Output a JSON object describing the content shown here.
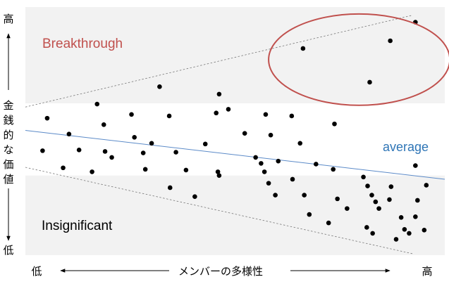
{
  "chart_data": {
    "type": "scatter",
    "y_axis": {
      "high_label": "高",
      "title": "金銭的な価値",
      "low_label": "低"
    },
    "x_axis": {
      "low_label": "低",
      "title": "メンバーの多様性",
      "high_label": "高"
    },
    "xlim": [
      0,
      100
    ],
    "ylim": [
      0,
      100
    ],
    "annotations": {
      "breakthrough": "Breakthrough",
      "average": "average",
      "insignificant": "Insignificant"
    },
    "colors": {
      "band": "#f2f2f2",
      "points": "#000000",
      "average_line": "#5b8ac8",
      "average_text": "#2e75b6",
      "breakthrough_text": "#c0504d",
      "ellipse": "#c0504d",
      "envelope": "#777777",
      "axis_text": "#000000"
    },
    "bands": [
      {
        "name": "top-band",
        "y0": 61.2,
        "y1": 100
      },
      {
        "name": "bottom-band",
        "y0": 0,
        "y1": 32.1
      }
    ],
    "lines": {
      "average": {
        "from": [
          0,
          50.3
        ],
        "to": [
          100,
          30.6
        ]
      },
      "upper_envelope": {
        "from": [
          0,
          59.7
        ],
        "to": [
          92.3,
          96.7
        ]
      },
      "lower_envelope": {
        "from": [
          0,
          35.4
        ],
        "to": [
          92.3,
          0.6
        ]
      }
    },
    "ellipse": {
      "cx": 79.6,
      "cy": 78.8,
      "rx": 21.6,
      "ry": 18.4
    },
    "points": [
      [
        5.2,
        55.2
      ],
      [
        10.4,
        48.8
      ],
      [
        4.1,
        42.1
      ],
      [
        12.8,
        42.4
      ],
      [
        9.0,
        35.2
      ],
      [
        15.9,
        33.6
      ],
      [
        17.1,
        60.9
      ],
      [
        18.7,
        52.6
      ],
      [
        19.0,
        41.8
      ],
      [
        20.6,
        39.4
      ],
      [
        25.3,
        56.7
      ],
      [
        26.0,
        47.5
      ],
      [
        28.1,
        41.2
      ],
      [
        28.6,
        34.6
      ],
      [
        30.1,
        45.1
      ],
      [
        32.0,
        67.9
      ],
      [
        34.3,
        56.1
      ],
      [
        34.5,
        27.2
      ],
      [
        35.9,
        41.5
      ],
      [
        38.3,
        34.3
      ],
      [
        40.4,
        23.6
      ],
      [
        42.9,
        44.8
      ],
      [
        45.5,
        57.3
      ],
      [
        45.9,
        33.6
      ],
      [
        46.2,
        64.9
      ],
      [
        46.2,
        32.1
      ],
      [
        48.4,
        58.8
      ],
      [
        52.3,
        49.1
      ],
      [
        54.9,
        39.4
      ],
      [
        56.2,
        37.0
      ],
      [
        57.0,
        33.6
      ],
      [
        57.3,
        56.7
      ],
      [
        58.0,
        29.0
      ],
      [
        58.5,
        48.4
      ],
      [
        59.6,
        24.2
      ],
      [
        60.3,
        37.9
      ],
      [
        63.5,
        56.1
      ],
      [
        63.7,
        30.6
      ],
      [
        65.5,
        45.1
      ],
      [
        66.5,
        24.2
      ],
      [
        67.7,
        16.4
      ],
      [
        69.3,
        36.7
      ],
      [
        72.3,
        13.0
      ],
      [
        73.4,
        34.6
      ],
      [
        73.7,
        52.9
      ],
      [
        74.4,
        22.7
      ],
      [
        76.7,
        18.8
      ],
      [
        80.6,
        31.5
      ],
      [
        81.6,
        27.9
      ],
      [
        82.6,
        24.2
      ],
      [
        83.5,
        21.5
      ],
      [
        84.3,
        18.8
      ],
      [
        81.4,
        11.2
      ],
      [
        82.8,
        8.8
      ],
      [
        87.2,
        27.6
      ],
      [
        86.8,
        22.4
      ],
      [
        88.4,
        6.4
      ],
      [
        89.6,
        15.2
      ],
      [
        90.4,
        10.4
      ],
      [
        91.5,
        8.8
      ],
      [
        93.0,
        36.1
      ],
      [
        93.0,
        15.5
      ],
      [
        93.5,
        22.1
      ],
      [
        95.6,
        28.2
      ],
      [
        95.1,
        10.1
      ],
      [
        66.2,
        83.3
      ],
      [
        82.1,
        69.7
      ],
      [
        87.0,
        86.4
      ],
      [
        93.0,
        93.9
      ]
    ]
  }
}
